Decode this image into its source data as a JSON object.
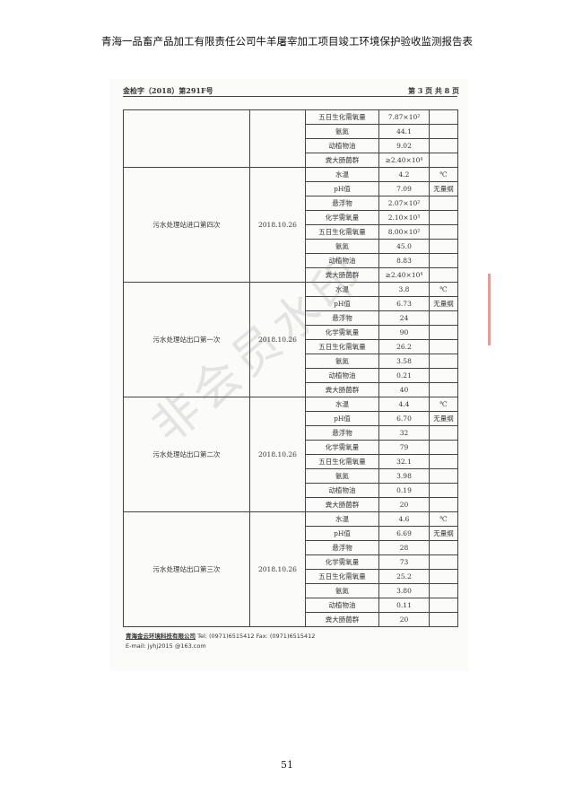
{
  "document_title": "青海一品畜产品加工有限责任公司牛羊屠宰加工项目竣工环境保护验收监测报告表",
  "header": {
    "ref": "金检字（2018）第291F号",
    "page": "第 3 页 共 8 页"
  },
  "table": {
    "blocks": [
      {
        "location": "",
        "date": "",
        "rows": [
          [
            "五日生化需氧量",
            "7.87×10²",
            ""
          ],
          [
            "氨氮",
            "44.1",
            ""
          ],
          [
            "动植物油",
            "9.02",
            ""
          ],
          [
            "粪大肠菌群",
            "≥2.40×10⁴",
            ""
          ]
        ]
      },
      {
        "location": "污水处理站进口第四次",
        "date": "2018.10.26",
        "rows": [
          [
            "水温",
            "4.2",
            "℃"
          ],
          [
            "pH值",
            "7.09",
            "无量纲"
          ],
          [
            "悬浮物",
            "2.07×10²",
            ""
          ],
          [
            "化学需氧量",
            "2.10×10³",
            ""
          ],
          [
            "五日生化需氧量",
            "8.00×10²",
            ""
          ],
          [
            "氨氮",
            "45.0",
            ""
          ],
          [
            "动植物油",
            "8.83",
            ""
          ],
          [
            "粪大肠菌群",
            "≥2.40×10⁴",
            ""
          ]
        ]
      },
      {
        "location": "污水处理站出口第一次",
        "date": "2018.10.26",
        "rows": [
          [
            "水温",
            "3.8",
            "℃"
          ],
          [
            "pH值",
            "6.73",
            "无量纲"
          ],
          [
            "悬浮物",
            "24",
            ""
          ],
          [
            "化学需氧量",
            "90",
            ""
          ],
          [
            "五日生化需氧量",
            "26.2",
            ""
          ],
          [
            "氨氮",
            "3.58",
            ""
          ],
          [
            "动植物油",
            "0.21",
            ""
          ],
          [
            "粪大肠菌群",
            "40",
            ""
          ]
        ]
      },
      {
        "location": "污水处理站出口第二次",
        "date": "2018.10.26",
        "rows": [
          [
            "水温",
            "4.4",
            "℃"
          ],
          [
            "pH值",
            "6.70",
            "无量纲"
          ],
          [
            "悬浮物",
            "32",
            ""
          ],
          [
            "化学需氧量",
            "79",
            ""
          ],
          [
            "五日生化需氧量",
            "32.1",
            ""
          ],
          [
            "氨氮",
            "3.98",
            ""
          ],
          [
            "动植物油",
            "0.19",
            ""
          ],
          [
            "粪大肠菌群",
            "20",
            ""
          ]
        ]
      },
      {
        "location": "污水处理站出口第三次",
        "date": "2018.10.26",
        "rows": [
          [
            "水温",
            "4.6",
            "℃"
          ],
          [
            "pH值",
            "6.69",
            "无量纲"
          ],
          [
            "悬浮物",
            "28",
            ""
          ],
          [
            "化学需氧量",
            "73",
            ""
          ],
          [
            "五日生化需氧量",
            "25.2",
            ""
          ],
          [
            "氨氮",
            "3.80",
            ""
          ],
          [
            "动植物油",
            "0.11",
            ""
          ],
          [
            "粪大肠菌群",
            "20",
            ""
          ]
        ]
      }
    ]
  },
  "footer": {
    "company": "青海金云环境科技有限公司",
    "tel": "Tel:  (0971)6515412    Fax:  (0971)6515412",
    "email": "E-mail:  jyhj2015 @163.com"
  },
  "watermark": "非会员水印",
  "page_number": "51"
}
